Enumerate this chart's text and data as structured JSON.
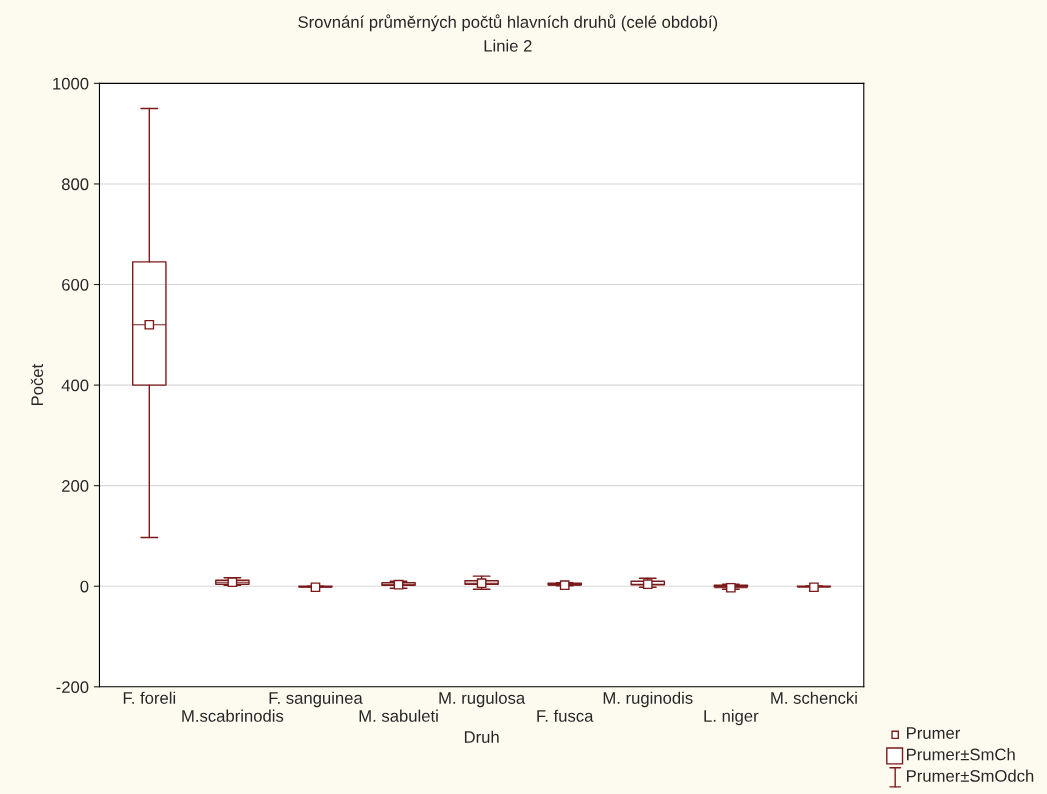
{
  "chart_data": {
    "type": "box",
    "title": "Srovnání průměrných počtů hlavních druhů (celé období)",
    "subtitle": "Linie 2",
    "xlabel": "Druh",
    "ylabel": "Počet",
    "categories": [
      "F. foreli",
      "M.scabrinodis",
      "F. sanguinea",
      "M. sabuleti",
      "M. rugulosa",
      "F. fusca",
      "M. ruginodis",
      "L. niger",
      "M. schencki"
    ],
    "series": [
      {
        "color": "#7b1a1a",
        "boxes": [
          {
            "low": 97,
            "q1": 400,
            "median": 520,
            "mean": 520,
            "q3": 645,
            "high": 950
          },
          {
            "low": 2,
            "q1": 4,
            "median": 8,
            "mean": 8,
            "q3": 12,
            "high": 17
          },
          {
            "low": -1,
            "q1": -1,
            "median": -2,
            "mean": -2,
            "q3": 0,
            "high": 0
          },
          {
            "low": -4,
            "q1": 2,
            "median": 3,
            "mean": 3,
            "q3": 7,
            "high": 10
          },
          {
            "low": -6,
            "q1": 4,
            "median": 6,
            "mean": 6,
            "q3": 11,
            "high": 20
          },
          {
            "low": 1,
            "q1": 3,
            "median": 2,
            "mean": 2,
            "q3": 6,
            "high": 7
          },
          {
            "low": -2,
            "q1": 3,
            "median": 4,
            "mean": 4,
            "q3": 10,
            "high": 16
          },
          {
            "low": -6,
            "q1": -1,
            "median": -3,
            "mean": -3,
            "q3": 2,
            "high": 4
          },
          {
            "low": 0,
            "q1": 0,
            "median": -2,
            "mean": -2,
            "q3": 0,
            "high": 0
          }
        ]
      }
    ],
    "ylim": [
      -200,
      1000
    ],
    "yticks": [
      -200,
      0,
      200,
      400,
      600,
      800,
      1000
    ],
    "grid": "y",
    "annotations": [
      "Prumer",
      "Prumer±SmCh",
      "Prumer±SmOdch"
    ]
  }
}
